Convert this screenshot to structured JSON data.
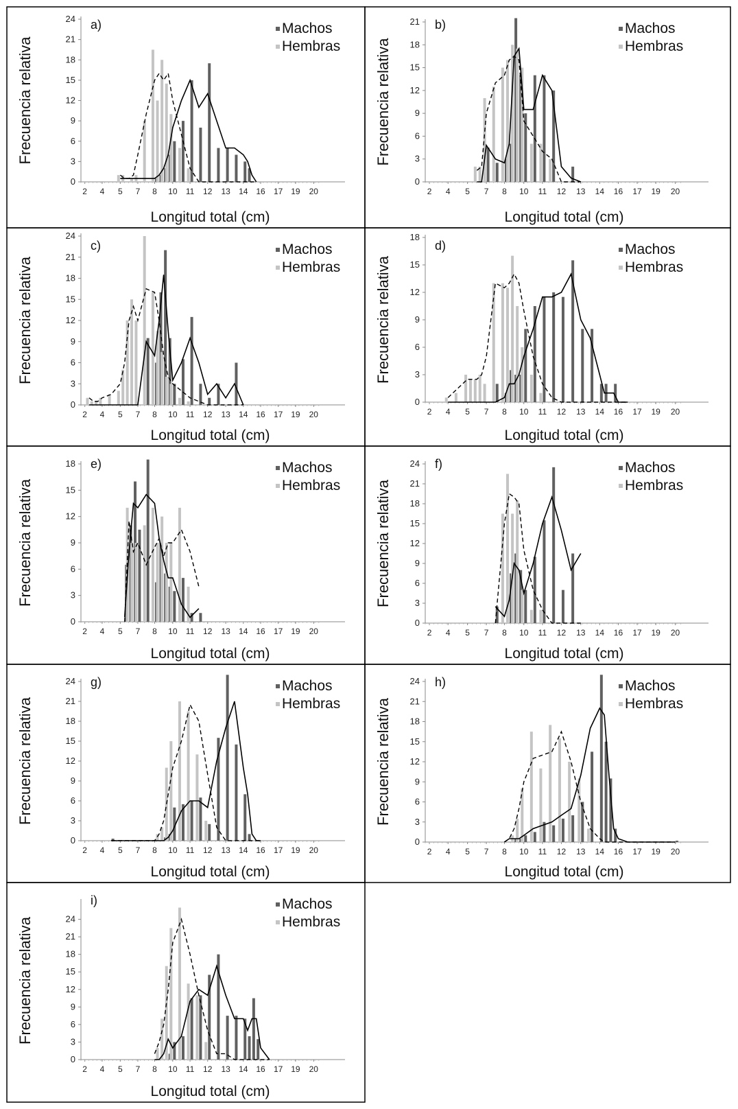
{
  "figure": {
    "ylabel": "Frecuencia relativa",
    "xlabel": "Longitud total (cm)",
    "x_ticks": [
      "2",
      "4",
      "5",
      "7",
      "8",
      "10",
      "11",
      "12",
      "13",
      "14",
      "16",
      "17",
      "19",
      "20"
    ],
    "legend": [
      "Machos",
      "Hembras"
    ],
    "colors": {
      "machos": "#606060",
      "hembras": "#c4c4c4",
      "line": "#000000",
      "frame": "#000000"
    }
  },
  "chart_data": [
    {
      "type": "bar",
      "panel": "a)",
      "ylim": [
        0,
        24
      ],
      "yticks": [
        "0",
        "3",
        "6",
        "9",
        "12",
        "15",
        "18",
        "21",
        "24"
      ],
      "x": [
        5.0,
        5.5,
        6.0,
        6.5,
        7.0,
        7.5,
        8.0,
        8.5,
        9.0,
        9.5,
        10.0,
        10.5,
        11.0,
        11.5,
        12.0,
        12.5,
        13.0,
        13.5,
        14.0,
        14.5,
        15.0,
        15.5
      ],
      "series": [
        {
          "name": "Machos",
          "values": [
            0,
            0,
            0,
            0,
            0,
            0,
            0.5,
            1,
            2,
            4,
            6,
            9,
            15,
            8,
            17.5,
            5,
            5,
            4,
            3,
            2,
            0,
            0
          ],
          "line": [
            0.5,
            0.5,
            0.5,
            0.5,
            0.5,
            0.5,
            0.5,
            1,
            2,
            4,
            8,
            12,
            15,
            11,
            13,
            9,
            5,
            5,
            4,
            3,
            1,
            0
          ]
        },
        {
          "name": "Hembras",
          "values": [
            1,
            1,
            0,
            0.5,
            1,
            9,
            19.5,
            12,
            18,
            14.5,
            10,
            5,
            2,
            0,
            0,
            0,
            0,
            0,
            0,
            0,
            0,
            0
          ],
          "line": [
            1,
            0.5,
            0.5,
            1,
            4,
            10,
            15,
            16,
            15,
            16,
            12,
            7,
            2,
            0,
            0,
            0,
            0,
            0,
            0,
            0,
            0,
            0
          ]
        }
      ]
    },
    {
      "type": "bar",
      "panel": "b)",
      "ylim": [
        0,
        21
      ],
      "yticks": [
        "0",
        "3",
        "6",
        "9",
        "12",
        "15",
        "18",
        "21"
      ],
      "x": [
        6.0,
        6.5,
        7.0,
        7.5,
        8.0,
        8.5,
        9.0,
        9.5,
        10.0,
        10.5,
        11.0,
        11.5,
        12.0,
        12.5,
        13.0
      ],
      "series": [
        {
          "name": "Machos",
          "values": [
            0,
            0,
            4.5,
            2.5,
            3,
            5,
            21.5,
            14,
            9,
            14,
            14,
            12,
            0,
            2,
            0
          ],
          "line": [
            0,
            0,
            4.8,
            3,
            2.5,
            5,
            16.5,
            17.5,
            9.5,
            9.5,
            14,
            12,
            2,
            0.5,
            0
          ]
        },
        {
          "name": "Hembras",
          "values": [
            2,
            2,
            11,
            12.5,
            15,
            16,
            18,
            17.5,
            15,
            5,
            5,
            3,
            0,
            0,
            0
          ],
          "line": [
            1.5,
            2,
            9,
            13,
            14,
            16,
            16.5,
            16,
            8,
            6,
            4,
            3,
            0,
            0,
            0
          ]
        }
      ]
    },
    {
      "type": "bar",
      "panel": "c)",
      "ylim": [
        0,
        24
      ],
      "yticks": [
        "0",
        "3",
        "6",
        "9",
        "12",
        "15",
        "18",
        "21",
        "24"
      ],
      "x": [
        2.5,
        3.0,
        3.5,
        4.0,
        4.5,
        5.0,
        5.5,
        6.0,
        6.5,
        7.0,
        7.5,
        8.0,
        8.5,
        9.0,
        9.5,
        10.0,
        10.5,
        11.0,
        11.5,
        12.0,
        12.5,
        13.0,
        13.5,
        14.0
      ],
      "series": [
        {
          "name": "Machos",
          "values": [
            0,
            0,
            0,
            0,
            0,
            0,
            0,
            0,
            0,
            0,
            9.5,
            6,
            16,
            22,
            9.5,
            3,
            6.5,
            12.5,
            3,
            1,
            3,
            0,
            6,
            0
          ],
          "line": [
            0,
            0,
            0,
            0,
            0,
            0,
            0,
            0,
            0,
            0,
            9,
            7,
            12,
            18.5,
            10.5,
            3.5,
            6,
            9.5,
            6,
            1.5,
            3,
            1,
            3,
            0
          ]
        },
        {
          "name": "Hembras",
          "values": [
            1,
            0.5,
            0.5,
            1,
            1.5,
            2,
            5,
            12,
            15,
            12,
            24,
            16,
            10.5,
            7.5,
            4,
            3,
            1,
            0.5,
            0,
            0,
            0,
            0,
            0,
            0
          ],
          "line": [
            1,
            0.5,
            0.5,
            1,
            1.5,
            3,
            6,
            12,
            14,
            12,
            16.5,
            16,
            12,
            7,
            4,
            3,
            2,
            1,
            0.5,
            0,
            0,
            0,
            0,
            0
          ]
        }
      ]
    },
    {
      "type": "bar",
      "panel": "d)",
      "ylim": [
        0,
        18
      ],
      "yticks": [
        "0",
        "3",
        "6",
        "9",
        "12",
        "15",
        "18"
      ],
      "x": [
        4.0,
        4.5,
        5.0,
        5.5,
        6.0,
        6.5,
        7.0,
        7.5,
        8.0,
        8.5,
        9.0,
        9.5,
        10.0,
        10.5,
        11.0,
        11.5,
        12.0,
        12.5,
        13.0,
        13.5,
        14.0,
        14.5,
        15.0,
        15.5,
        16.0,
        16.5
      ],
      "series": [
        {
          "name": "Machos",
          "values": [
            0,
            0,
            0,
            0,
            0,
            0,
            0,
            2,
            1,
            3.5,
            3,
            3,
            8,
            10.5,
            11.5,
            12,
            11.5,
            15.5,
            8,
            8,
            2,
            2,
            0,
            2,
            0,
            0
          ],
          "line": [
            0,
            0,
            0,
            0,
            0,
            0,
            0,
            0,
            0.5,
            2,
            2,
            3,
            5,
            8,
            11.5,
            11.5,
            12,
            14,
            9,
            7,
            3,
            1,
            1,
            1,
            0,
            0
          ]
        },
        {
          "name": "Hembras",
          "values": [
            0.5,
            1,
            3,
            2.5,
            2.5,
            3,
            2,
            13,
            13,
            12.5,
            16,
            10.5,
            6,
            3,
            1,
            0,
            0,
            0,
            0,
            0,
            0,
            0,
            0,
            0,
            0,
            0
          ],
          "line": [
            0.5,
            1.5,
            2.5,
            2.5,
            2.5,
            3,
            5,
            13,
            12.5,
            13,
            14,
            13,
            10,
            5,
            2,
            0.5,
            0,
            0,
            0,
            0,
            0,
            0,
            0,
            0,
            0,
            0
          ]
        }
      ]
    },
    {
      "type": "bar",
      "panel": "e)",
      "ylim": [
        0,
        18
      ],
      "yticks": [
        "0",
        "3",
        "6",
        "9",
        "12",
        "15",
        "18"
      ],
      "x": [
        5.5,
        6.0,
        6.5,
        7.0,
        7.5,
        8.0,
        8.5,
        9.0,
        9.5,
        10.0,
        10.5,
        11.0,
        11.5
      ],
      "series": [
        {
          "name": "Machos",
          "values": [
            6.5,
            11,
            16,
            10.5,
            18.5,
            4.5,
            9,
            5.5,
            4,
            3.5,
            5,
            1,
            1
          ],
          "line": [
            0.5,
            8,
            13.5,
            13,
            14.5,
            13.5,
            9.5,
            7,
            5,
            5,
            2,
            0.5,
            1.5
          ]
        },
        {
          "name": "Hembras",
          "values": [
            0,
            13,
            9,
            9,
            11,
            13,
            9,
            12,
            9,
            9,
            13,
            4,
            0
          ],
          "line": [
            0,
            11.5,
            8,
            9,
            6.5,
            8.5,
            9.5,
            7.5,
            9,
            9,
            10.5,
            8,
            4
          ]
        }
      ]
    },
    {
      "type": "bar",
      "panel": "f)",
      "ylim": [
        0,
        24
      ],
      "yticks": [
        "0",
        "3",
        "6",
        "9",
        "12",
        "15",
        "18",
        "21",
        "24"
      ],
      "x": [
        7.5,
        8.0,
        8.5,
        9.0,
        9.5,
        10.0,
        10.5,
        11.0,
        11.5,
        12.0,
        12.5,
        13.0
      ],
      "series": [
        {
          "name": "Machos",
          "values": [
            2.5,
            0,
            7.5,
            10.5,
            8,
            5,
            10,
            15.5,
            23.5,
            5,
            10.5,
            0
          ],
          "line": [
            2.5,
            1,
            3.5,
            9,
            8,
            4.5,
            9,
            15,
            19,
            14,
            8,
            10.5
          ]
        },
        {
          "name": "Hembras",
          "values": [
            0,
            16.5,
            22.5,
            16.5,
            18.5,
            5,
            2,
            2,
            0,
            0,
            0,
            0
          ],
          "line": [
            0,
            15,
            19.5,
            19,
            18,
            11,
            5,
            2,
            0,
            0,
            0,
            0
          ]
        }
      ]
    },
    {
      "type": "bar",
      "panel": "g)",
      "ylim": [
        0,
        24
      ],
      "yticks": [
        "0",
        "3",
        "6",
        "9",
        "12",
        "15",
        "18",
        "21",
        "24"
      ],
      "x": [
        4.5,
        5.0,
        5.5,
        6.0,
        6.5,
        7.0,
        7.5,
        8.0,
        8.5,
        9.0,
        9.5,
        10.0,
        10.5,
        11.0,
        11.5,
        12.0,
        12.5,
        13.0,
        13.5,
        14.0,
        14.5,
        15.0,
        15.5,
        16.0
      ],
      "series": [
        {
          "name": "Machos",
          "values": [
            0.3,
            0,
            0,
            0,
            0,
            0,
            0,
            0,
            0,
            0.5,
            1,
            5,
            5.5,
            6,
            6.5,
            2.5,
            15.5,
            25,
            14.5,
            7,
            1,
            0,
            0,
            0
          ],
          "line": [
            0,
            0,
            0,
            0,
            0,
            0,
            0,
            0,
            0,
            0,
            0.5,
            1.5,
            4.5,
            6,
            6,
            5,
            12,
            17,
            21,
            11,
            7,
            1,
            0,
            0
          ]
        },
        {
          "name": "Hembras",
          "values": [
            0,
            0,
            0,
            0,
            0,
            0,
            0,
            0,
            1,
            2,
            11,
            15,
            21,
            19.5,
            13,
            3,
            0,
            0,
            0,
            0,
            0,
            0,
            0,
            0
          ],
          "line": [
            0,
            0,
            0,
            0,
            0,
            0,
            0,
            0,
            1,
            3,
            7,
            11,
            15,
            20.5,
            18,
            10,
            2,
            0,
            0,
            0,
            0,
            0,
            0,
            0
          ]
        }
      ]
    },
    {
      "type": "bar",
      "panel": "h)",
      "ylim": [
        0,
        24
      ],
      "yticks": [
        "0",
        "3",
        "6",
        "9",
        "12",
        "15",
        "18",
        "21",
        "24"
      ],
      "x": [
        8.0,
        8.5,
        9.0,
        9.5,
        10.0,
        10.5,
        11.0,
        11.5,
        12.0,
        12.5,
        13.0,
        13.5,
        14.0,
        14.5,
        15.0,
        15.5,
        16.0,
        16.5,
        17.0,
        20.0
      ],
      "series": [
        {
          "name": "Machos",
          "values": [
            0,
            0,
            0.5,
            0.5,
            1,
            1.5,
            3,
            2.5,
            3.5,
            4,
            6,
            13.5,
            25,
            15,
            9.5,
            2,
            0,
            0,
            0,
            0.2
          ],
          "line": [
            0,
            0.5,
            0.5,
            0.5,
            1,
            2,
            2.5,
            3,
            4,
            5,
            10,
            17,
            20,
            19,
            10,
            2,
            0.5,
            0,
            0,
            0
          ]
        },
        {
          "name": "Hembras",
          "values": [
            0,
            0,
            1,
            3.5,
            8,
            16.5,
            11,
            17.5,
            15.5,
            12,
            9.5,
            2,
            0,
            0,
            0,
            0,
            0,
            0,
            0,
            0
          ],
          "line": [
            0,
            0.5,
            2,
            5,
            9,
            12.5,
            13,
            13.5,
            16.5,
            12,
            6,
            2,
            0.5,
            0,
            0,
            0,
            0,
            0,
            0,
            0
          ]
        }
      ]
    },
    {
      "type": "bar",
      "panel": "i)",
      "ylim": [
        0,
        27
      ],
      "yticks": [
        "0",
        "3",
        "6",
        "9",
        "12",
        "15",
        "18",
        "21",
        "24"
      ],
      "x": [
        8.0,
        8.5,
        9.0,
        9.5,
        10.0,
        10.5,
        11.0,
        11.5,
        12.0,
        12.5,
        13.0,
        13.5,
        14.0,
        14.5,
        15.0,
        15.5,
        16.0,
        16.5
      ],
      "series": [
        {
          "name": "Machos",
          "values": [
            0,
            0,
            0,
            1,
            3,
            4,
            10.5,
            11,
            14.5,
            18,
            7.5,
            7.5,
            7,
            4,
            10.5,
            3.5,
            0,
            0
          ],
          "line": [
            0,
            0,
            1,
            3.5,
            2,
            4,
            10,
            12,
            11,
            16,
            11,
            7,
            7,
            5,
            7,
            7,
            2,
            0
          ]
        },
        {
          "name": "Hembras",
          "values": [
            0,
            2,
            7,
            16,
            22.5,
            26,
            13,
            11,
            3,
            0,
            0,
            0,
            0,
            0,
            0,
            0,
            0,
            0
          ],
          "line": [
            1,
            3,
            6,
            12,
            20,
            24,
            18,
            11,
            5,
            1,
            1,
            0,
            0,
            0,
            0,
            0,
            0,
            0
          ]
        }
      ]
    }
  ]
}
